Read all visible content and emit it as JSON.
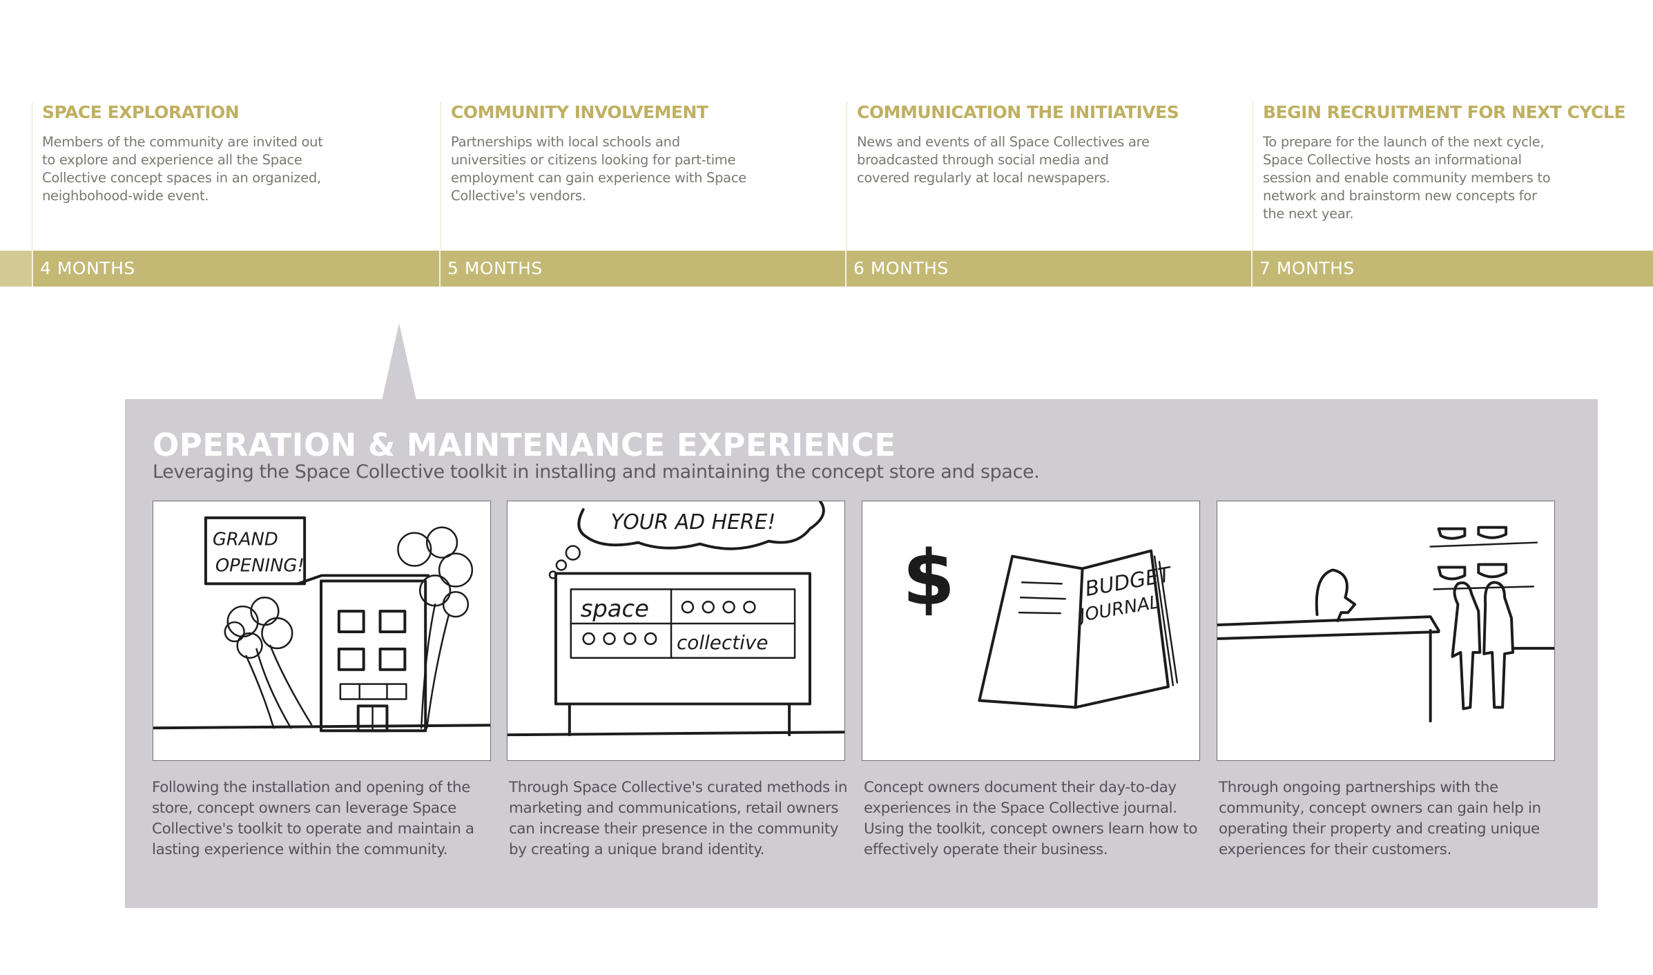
{
  "timeline": {
    "phases": [
      {
        "title": "SPACE EXPLORATION",
        "description": "Members of the community are invited out to explore and experience all the Space Collective concept spaces in an organized, neighbohood-wide event.",
        "duration": "4 MONTHS"
      },
      {
        "title": "COMMUNITY INVOLVEMENT",
        "description": "Partnerships with local schools and universities or citizens looking for part-time employment can gain experience with Space Collective's vendors.",
        "duration": "5 MONTHS"
      },
      {
        "title": "COMMUNICATION THE INITIATIVES",
        "description": "News and events of all Space Collectives are broadcasted through social media and covered regularly at local newspapers.",
        "duration": "6 MONTHS"
      },
      {
        "title": "BEGIN RECRUITMENT FOR NEXT CYCLE",
        "description": "To prepare for the launch of the next cycle, Space Collective hosts an informational session and enable community members to network and brainstorm new concepts for the next year.",
        "duration": "7 MONTHS"
      }
    ],
    "band_color": "#c3b974",
    "title_color": "#bfb062"
  },
  "panel": {
    "title": "OPERATION & MAINTENANCE EXPERIENCE",
    "subtitle": "Leveraging the Space Collective toolkit in installing and maintaining the concept store and space.",
    "background_color": "#cfccd2",
    "sketches": [
      {
        "icon": "grand-opening-storefront-sketch",
        "sign_text": [
          "GRAND",
          "OPENING!"
        ],
        "caption": "Following the installation and opening of the store, concept owners can leverage Space Collective's toolkit to operate and maintain a lasting experience within the community."
      },
      {
        "icon": "billboard-sketch",
        "sign_text": [
          "YOUR AD HERE!",
          "space",
          "collective"
        ],
        "caption": "Through Space Collective's curated methods in marketing and communications, retail owners can increase their presence in the community by creating a unique brand identity."
      },
      {
        "icon": "budget-journal-sketch",
        "sign_text": [
          "BUDGET",
          "JOURNAL",
          "$"
        ],
        "caption": "Concept owners document their day-to-day experiences in the Space Collective journal. Using the toolkit, concept owners learn how to effectively operate their business."
      },
      {
        "icon": "store-counter-sketch",
        "sign_text": [],
        "caption": "Through ongoing partnerships with the community, concept owners can gain help in operating their property and creating unique experiences for their customers."
      }
    ]
  }
}
